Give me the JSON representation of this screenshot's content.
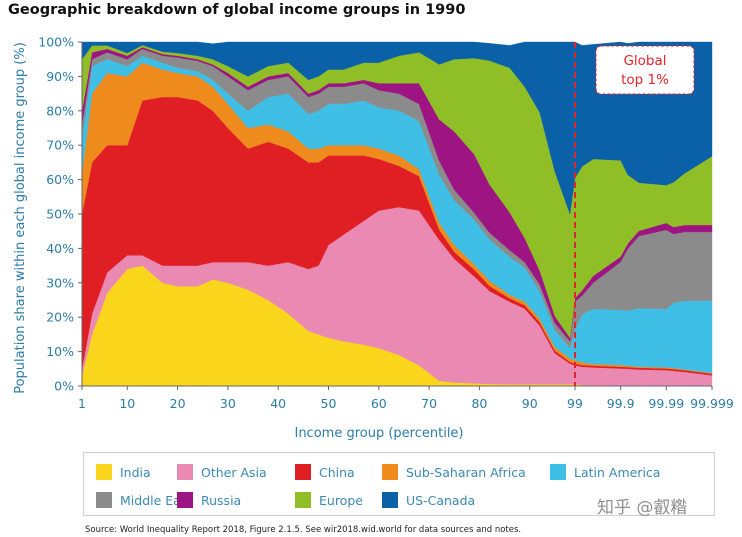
{
  "chart_data": {
    "type": "area",
    "title": "Geographic breakdown of global income groups in 1990",
    "xlabel": "Income group (percentile)",
    "ylabel": "Population share within each global income group (%)",
    "ylim": [
      0,
      100
    ],
    "yticks": [
      "0%",
      "10%",
      "20%",
      "30%",
      "40%",
      "50%",
      "60%",
      "70%",
      "80%",
      "90%",
      "100%"
    ],
    "xtick_labels": [
      "1",
      "10",
      "20",
      "30",
      "40",
      "50",
      "60",
      "70",
      "80",
      "90",
      "99",
      "99.9",
      "99.99",
      "99.999"
    ],
    "x": [
      1,
      3,
      6,
      10,
      13,
      17,
      20,
      24,
      27,
      30,
      34,
      38,
      42,
      46,
      48,
      50,
      53,
      57,
      60,
      64,
      68,
      72,
      75,
      79,
      82,
      86,
      89,
      92,
      95,
      98,
      99,
      99.3,
      99.6,
      99.9,
      99.93,
      99.96,
      99.99,
      99.993,
      99.996,
      99.999
    ],
    "series": [
      {
        "name": "India",
        "color": "#f9d51c",
        "values": [
          3,
          15,
          27,
          34,
          35,
          30,
          29,
          29,
          31,
          30,
          28,
          25,
          21,
          16,
          15,
          14,
          13,
          12,
          11,
          9,
          6,
          1.5,
          1,
          0.8,
          0.6,
          0.5,
          0.5,
          0.5,
          0.5,
          0.5,
          0.5,
          0.3,
          0.2,
          0.1,
          0.1,
          0.1,
          0.1,
          0.1,
          0.1,
          0.1
        ]
      },
      {
        "name": "Other Asia",
        "color": "#ea8ab2",
        "values": [
          2,
          6,
          6,
          4,
          3,
          5,
          6,
          6,
          5,
          6,
          8,
          10,
          15,
          18,
          20,
          27,
          31,
          36,
          40,
          43,
          45,
          41,
          36,
          31,
          27,
          24,
          22,
          17,
          9,
          6,
          5.5,
          5.3,
          5.2,
          5,
          4.9,
          4.7,
          4.5,
          4.3,
          4,
          3
        ]
      },
      {
        "name": "China",
        "color": "#e01f25",
        "values": [
          45,
          44,
          37,
          32,
          45,
          49,
          49,
          48,
          44,
          39,
          33,
          36,
          33,
          31,
          30,
          26,
          23,
          19,
          15,
          12,
          10,
          3,
          2,
          2,
          1.5,
          1,
          1,
          1,
          0.8,
          0.5,
          0.5,
          0.5,
          0.5,
          0.5,
          0.5,
          0.5,
          0.5,
          0.5,
          0.5,
          0.5
        ]
      },
      {
        "name": "Sub-Saharan Africa",
        "color": "#ef8a1c",
        "values": [
          12,
          20,
          21,
          20,
          11,
          8,
          7,
          7,
          7,
          7,
          6,
          5,
          5,
          4,
          4,
          3,
          3,
          3,
          3,
          3,
          2,
          2,
          2,
          1.5,
          1.5,
          1,
          1,
          1,
          1,
          1,
          1,
          0.8,
          0.5,
          0.5,
          0.4,
          0.3,
          0.3,
          0.3,
          0.2,
          0.2
        ]
      },
      {
        "name": "Latin America",
        "color": "#40bfe6",
        "values": [
          10,
          8,
          4,
          3,
          2,
          2,
          1.5,
          1.5,
          2,
          3,
          5,
          8,
          11,
          10,
          11,
          12,
          12,
          13,
          12,
          13,
          14,
          14,
          13,
          13,
          12,
          11,
          10,
          8,
          5,
          3,
          9,
          14,
          16,
          16,
          16,
          17,
          17,
          19,
          20,
          21
        ]
      },
      {
        "name": "Middle East",
        "color": "#8b8b8b",
        "values": [
          4,
          2,
          2,
          2,
          2,
          2,
          3,
          3,
          4,
          5,
          6,
          5,
          5,
          5,
          5,
          5,
          5,
          5,
          5,
          5,
          5,
          4,
          3,
          2,
          2,
          2,
          1.5,
          2,
          2,
          2,
          8,
          5.4,
          7.6,
          14,
          18,
          21,
          23,
          20,
          20,
          20
        ]
      },
      {
        "name": "Russia",
        "color": "#9e1483",
        "values": [
          4,
          2,
          1,
          1,
          0.5,
          0.5,
          0.5,
          0.5,
          0.5,
          1,
          1,
          1,
          1,
          1,
          1,
          1,
          1,
          1,
          2,
          3,
          6,
          12,
          17,
          17,
          14,
          11,
          7,
          4,
          2,
          1,
          1,
          1.5,
          2,
          1.5,
          1.5,
          1.5,
          2,
          2,
          2,
          2
        ]
      },
      {
        "name": "Europe",
        "color": "#8fbe27",
        "values": [
          15,
          2,
          1,
          0.8,
          0.6,
          0.7,
          0.8,
          1,
          1.5,
          2,
          3,
          3,
          3,
          4,
          4,
          4,
          4,
          5,
          6,
          8,
          9,
          16,
          21,
          28,
          36,
          42,
          44,
          46,
          42,
          36,
          35,
          36,
          34,
          28,
          20,
          14,
          11,
          13,
          15,
          20
        ]
      },
      {
        "name": "US-Canada",
        "color": "#0a61a7",
        "values": [
          5,
          1,
          1,
          3.2,
          0.9,
          2.8,
          3.2,
          4,
          4.5,
          7,
          10,
          7,
          6,
          11,
          10,
          8,
          8,
          6,
          6,
          4,
          3,
          6.5,
          5,
          4.7,
          5,
          6.5,
          13,
          20.5,
          37.7,
          50,
          39.5,
          35.2,
          33.3,
          34.4,
          38.2,
          40.9,
          41.6,
          41.8,
          39.2,
          33.2
        ]
      }
    ],
    "annotations": [
      {
        "text_lines": [
          "Global",
          "top 1%"
        ],
        "at_x": 99
      }
    ],
    "legend_placement": "bottom",
    "grid": false
  },
  "source_note": "Source: World Inequality Report 2018, Figure 2.1.5. See wir2018.wid.world  for data sources  and notes.",
  "watermark": "知乎 @叡糌"
}
